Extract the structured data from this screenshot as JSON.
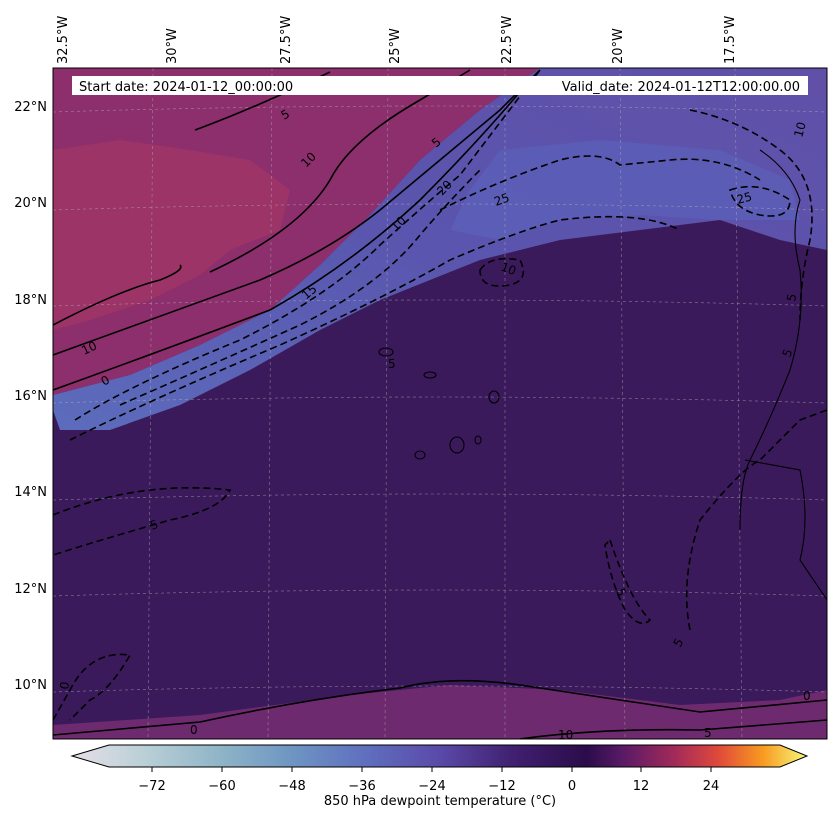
{
  "header": {
    "start_date": "Start date: 2024-01-12_00:00:00",
    "valid_date": "Valid_date: 2024-01-12T12:00:00.00"
  },
  "axes": {
    "lon_labels": [
      "32.5°W",
      "30°W",
      "27.5°W",
      "25°W",
      "22.5°W",
      "20°W",
      "17.5°W"
    ],
    "lat_labels": [
      "22°N",
      "20°N",
      "18°N",
      "16°N",
      "14°N",
      "12°N",
      "10°N"
    ]
  },
  "contour_labels": [
    "5",
    "10",
    "5",
    "0",
    "10",
    "5",
    "0",
    "10",
    "15",
    "20",
    "25",
    "10",
    "25",
    "10",
    "5",
    "5",
    "5",
    "5",
    "5",
    "0",
    "0",
    "10",
    "5"
  ],
  "colorbar": {
    "ticks": [
      "−72",
      "−60",
      "−48",
      "−36",
      "−24",
      "−12",
      "0",
      "12",
      "24"
    ],
    "title": "850 hPa dewpoint temperature ($^\\circ$C)",
    "title_display": "850 hPa dewpoint temperature (°C)",
    "min": -84,
    "max": 36
  },
  "colors": {
    "dry_purple": "#5a4fa6",
    "very_dry": "#5c6cbc",
    "background_purple": "#3a1a5e",
    "moist_magenta": "#8a2e6a",
    "warm_magenta": "#a03a6a"
  }
}
